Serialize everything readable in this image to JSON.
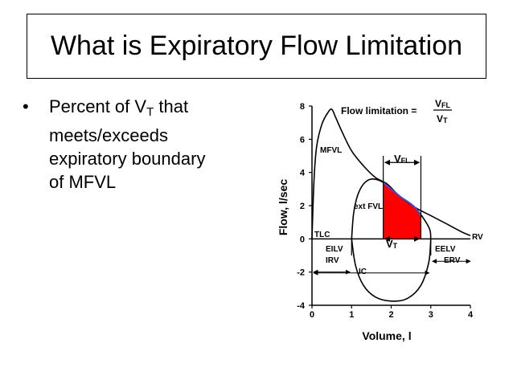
{
  "slide": {
    "title": "What is Expiratory Flow Limitation",
    "bullet": {
      "symbol": "•",
      "line1_pre": "Percent of V",
      "line1_sub": "T",
      "line1_post": " that",
      "line2": "meets/exceeds",
      "line3": "expiratory boundary",
      "line4": "of MFVL"
    }
  },
  "figure": {
    "ylabel": "Flow, l/sec",
    "xlabel": "Volume, l",
    "formula_label": "Flow limitation =",
    "formula_num_main": "V",
    "formula_num_sub": "FL",
    "formula_den_main": "V",
    "formula_den_sub": "T",
    "labels": {
      "mfvl": "MFVL",
      "ext_fvl": "ext FVL",
      "tlc": "TLC",
      "rv": "RV",
      "eilv": "EILV",
      "eelv": "EELV",
      "irv": "IRV",
      "erv": "ERV",
      "ic": "IC",
      "vt_main": "V",
      "vt_sub": "T",
      "vfl_main": "V",
      "vfl_sub": "FL"
    },
    "fill_color": "#ff0000",
    "ext_line_color": "#4a4ad0"
  },
  "chart_data": {
    "type": "line",
    "xlabel": "Volume, l",
    "ylabel": "Flow, l/sec",
    "xlim": [
      0,
      4
    ],
    "ylim": [
      -4,
      8
    ],
    "x_ticks": [
      0,
      1,
      2,
      3,
      4
    ],
    "y_ticks": [
      -4,
      -2,
      0,
      2,
      4,
      6,
      8
    ],
    "series": [
      {
        "name": "MFVL",
        "points": [
          [
            0,
            0
          ],
          [
            0.05,
            3.5
          ],
          [
            0.12,
            5.6
          ],
          [
            0.25,
            6.9
          ],
          [
            0.4,
            7.6
          ],
          [
            0.5,
            7.8
          ],
          [
            0.6,
            7.3
          ],
          [
            0.75,
            6.5
          ],
          [
            1.0,
            5.3
          ],
          [
            1.3,
            4.4
          ],
          [
            1.6,
            3.7
          ],
          [
            1.9,
            3.3
          ],
          [
            2.2,
            2.6
          ],
          [
            2.6,
            1.9
          ],
          [
            3.0,
            1.4
          ],
          [
            3.4,
            0.9
          ],
          [
            3.8,
            0.4
          ],
          [
            4.0,
            0.2
          ]
        ]
      },
      {
        "name": "ext FVL",
        "points": [
          [
            1.0,
            0
          ],
          [
            1.05,
            1.5
          ],
          [
            1.15,
            2.6
          ],
          [
            1.3,
            3.3
          ],
          [
            1.5,
            3.6
          ],
          [
            1.8,
            3.4
          ],
          [
            2.2,
            2.6
          ],
          [
            2.6,
            1.9
          ],
          [
            2.95,
            0.7
          ],
          [
            3.0,
            0
          ]
        ]
      },
      {
        "name": "inspiratory",
        "points": [
          [
            1.0,
            0
          ],
          [
            1.1,
            -1.6
          ],
          [
            1.3,
            -2.8
          ],
          [
            1.6,
            -3.5
          ],
          [
            2.0,
            -3.75
          ],
          [
            2.4,
            -3.6
          ],
          [
            2.75,
            -2.8
          ],
          [
            2.95,
            -1.4
          ],
          [
            3.0,
            0
          ]
        ]
      }
    ],
    "flow_limited_segment": {
      "x_start": 1.8,
      "x_end": 2.75
    },
    "vt_range": [
      1.8,
      2.75
    ],
    "eilv": 1.0,
    "eelv": 3.0
  }
}
